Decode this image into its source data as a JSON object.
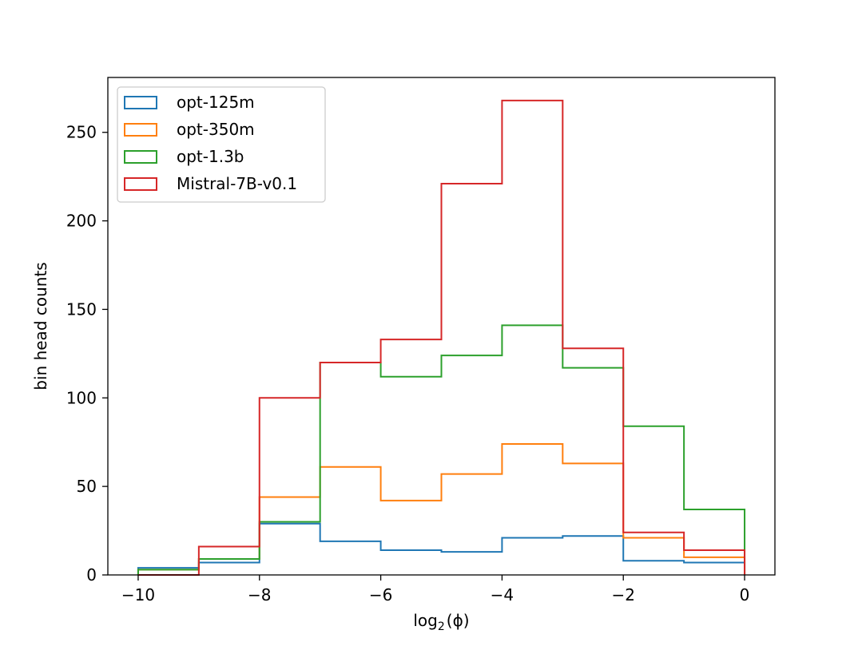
{
  "chart_data": {
    "type": "histogram-step",
    "xlabel": "log",
    "xlabel_sub": "2",
    "xlabel_rest": "(ϕ)",
    "ylabel": "bin head counts",
    "xlim": [
      -10.5,
      0.5
    ],
    "ylim": [
      0,
      281
    ],
    "xticks": [
      -10,
      -8,
      -6,
      -4,
      -2,
      0
    ],
    "xtick_labels": [
      "−10",
      "−8",
      "−6",
      "−4",
      "−2",
      "0"
    ],
    "yticks": [
      0,
      50,
      100,
      150,
      200,
      250
    ],
    "ytick_labels": [
      "0",
      "50",
      "100",
      "150",
      "200",
      "250"
    ],
    "bin_edges": [
      -10,
      -9,
      -8,
      -7,
      -6,
      -5,
      -4,
      -3,
      -2,
      -1,
      0
    ],
    "legend_position": "upper-left",
    "series": [
      {
        "name": "opt-125m",
        "color": "#1f77b4",
        "values": [
          4,
          7,
          29,
          19,
          14,
          13,
          21,
          22,
          8,
          7
        ]
      },
      {
        "name": "opt-350m",
        "color": "#ff7f0e",
        "values": [
          3,
          9,
          44,
          61,
          42,
          57,
          74,
          63,
          21,
          10
        ]
      },
      {
        "name": "opt-1.3b",
        "color": "#2ca02c",
        "values": [
          3,
          9,
          30,
          120,
          112,
          124,
          141,
          117,
          84,
          37
        ]
      },
      {
        "name": "Mistral-7B-v0.1",
        "color": "#d62728",
        "values": [
          0,
          16,
          100,
          120,
          133,
          221,
          268,
          128,
          24,
          14
        ]
      }
    ]
  }
}
